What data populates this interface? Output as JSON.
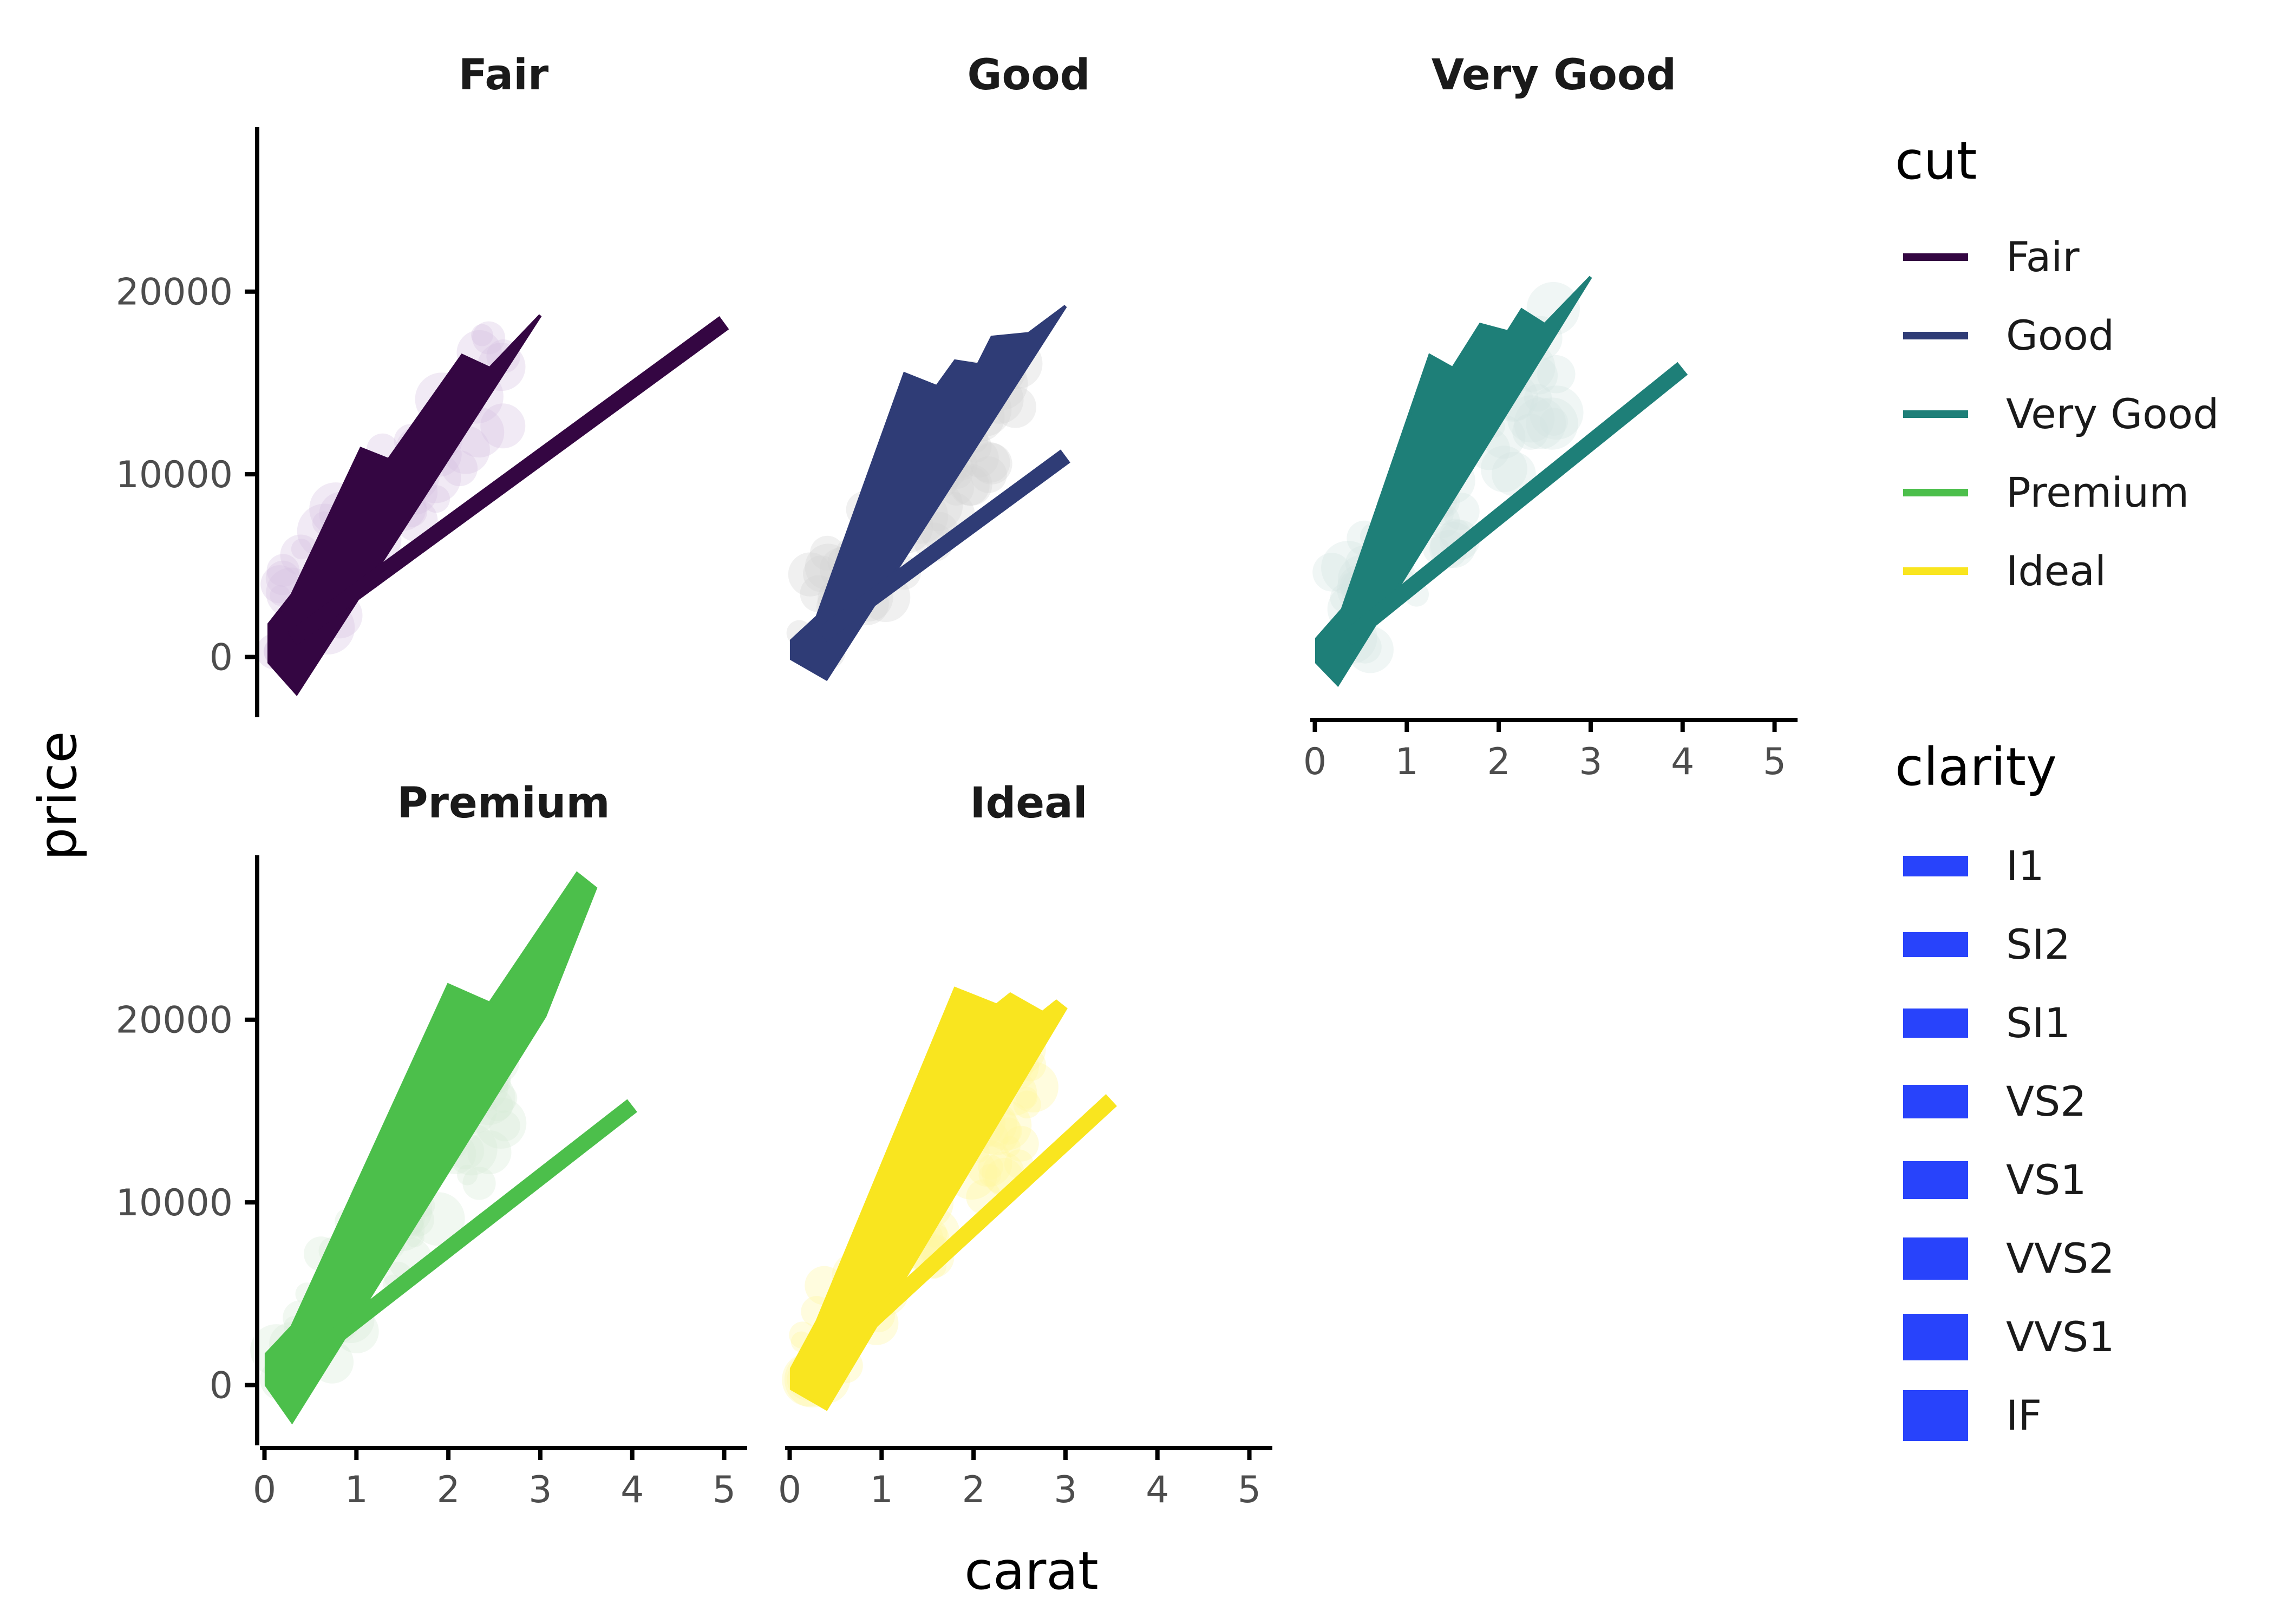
{
  "chart_data": {
    "type": "line",
    "xlabel": "carat",
    "ylabel": "price",
    "xlim": [
      -0.05,
      5.25
    ],
    "ylim": [
      -3300,
      29000
    ],
    "x_ticks": [
      "0",
      "1",
      "2",
      "3",
      "4",
      "5"
    ],
    "x_tick_values": [
      0,
      1,
      2,
      3,
      4,
      5
    ],
    "y_ticks": [
      "0",
      "10000",
      "20000"
    ],
    "y_tick_values": [
      0,
      10000,
      20000
    ],
    "facets": [
      {
        "label": "Fair",
        "color": "#340642",
        "point_color": "#d8c4e2",
        "main_path": [
          [
            0.05,
            1800
          ],
          [
            0.3,
            3400
          ],
          [
            1.05,
            11400
          ],
          [
            1.35,
            10800
          ],
          [
            2.15,
            16500
          ],
          [
            2.45,
            15800
          ],
          [
            3.0,
            18700
          ],
          [
            0.35,
            -2000
          ],
          [
            0.05,
            -300
          ]
        ],
        "diag_line": [
          [
            0.3,
            1000
          ],
          [
            5.0,
            18300
          ]
        ]
      },
      {
        "label": "Good",
        "color": "#2f3c76",
        "point_color": "#d5d5d5",
        "main_path": [
          [
            0.02,
            900
          ],
          [
            0.3,
            2200
          ],
          [
            1.25,
            15500
          ],
          [
            1.6,
            14800
          ],
          [
            1.8,
            16200
          ],
          [
            2.05,
            16000
          ],
          [
            2.2,
            17500
          ],
          [
            2.6,
            17700
          ],
          [
            3.0,
            19200
          ],
          [
            0.4,
            -1200
          ],
          [
            0.02,
            -100
          ]
        ],
        "diag_line": [
          [
            0.35,
            1200
          ],
          [
            3.0,
            11000
          ]
        ]
      },
      {
        "label": "Very Good",
        "color": "#1e7f78",
        "point_color": "#d4e4e2",
        "main_path": [
          [
            0.02,
            1000
          ],
          [
            0.3,
            2600
          ],
          [
            1.25,
            16500
          ],
          [
            1.5,
            15800
          ],
          [
            1.8,
            18200
          ],
          [
            2.1,
            17800
          ],
          [
            2.25,
            19000
          ],
          [
            2.5,
            18200
          ],
          [
            3.0,
            20800
          ],
          [
            0.25,
            -1500
          ],
          [
            0.02,
            -300
          ]
        ],
        "diag_line": [
          [
            0.35,
            1000
          ],
          [
            4.0,
            15800
          ]
        ]
      },
      {
        "label": "Premium",
        "color": "#4cbf4b",
        "point_color": "#d6ead6",
        "main_path": [
          [
            0.02,
            1700
          ],
          [
            0.3,
            3200
          ],
          [
            2.0,
            21900
          ],
          [
            2.45,
            20900
          ],
          [
            3.4,
            28000
          ],
          [
            3.6,
            27200
          ],
          [
            3.05,
            20200
          ],
          [
            0.3,
            -2000
          ],
          [
            0.02,
            0
          ]
        ],
        "diag_line": [
          [
            0.35,
            1000
          ],
          [
            4.0,
            15300
          ]
        ]
      },
      {
        "label": "Ideal",
        "color": "#f9e51f",
        "point_color": "#fff6a0",
        "main_path": [
          [
            0.02,
            900
          ],
          [
            0.3,
            3500
          ],
          [
            1.8,
            21700
          ],
          [
            2.25,
            20800
          ],
          [
            2.4,
            21400
          ],
          [
            2.75,
            20400
          ],
          [
            2.9,
            21000
          ],
          [
            3.0,
            20600
          ],
          [
            0.4,
            -1300
          ],
          [
            0.02,
            -200
          ]
        ],
        "diag_line": [
          [
            0.35,
            1000
          ],
          [
            3.5,
            15600
          ]
        ]
      }
    ],
    "legend_cut": {
      "title": "cut",
      "items": [
        {
          "label": "Fair",
          "color": "#340642"
        },
        {
          "label": "Good",
          "color": "#2f3c76"
        },
        {
          "label": "Very Good",
          "color": "#1e7f78"
        },
        {
          "label": "Premium",
          "color": "#4cbf4b"
        },
        {
          "label": "Ideal",
          "color": "#f9e51f"
        }
      ]
    },
    "legend_clarity": {
      "title": "clarity",
      "color": "#2843fb",
      "items": [
        {
          "label": "I1",
          "size": 1
        },
        {
          "label": "SI2",
          "size": 2
        },
        {
          "label": "SI1",
          "size": 3
        },
        {
          "label": "VS2",
          "size": 4
        },
        {
          "label": "VS1",
          "size": 5
        },
        {
          "label": "VVS2",
          "size": 6
        },
        {
          "label": "VVS1",
          "size": 7
        },
        {
          "label": "IF",
          "size": 8
        }
      ]
    }
  }
}
